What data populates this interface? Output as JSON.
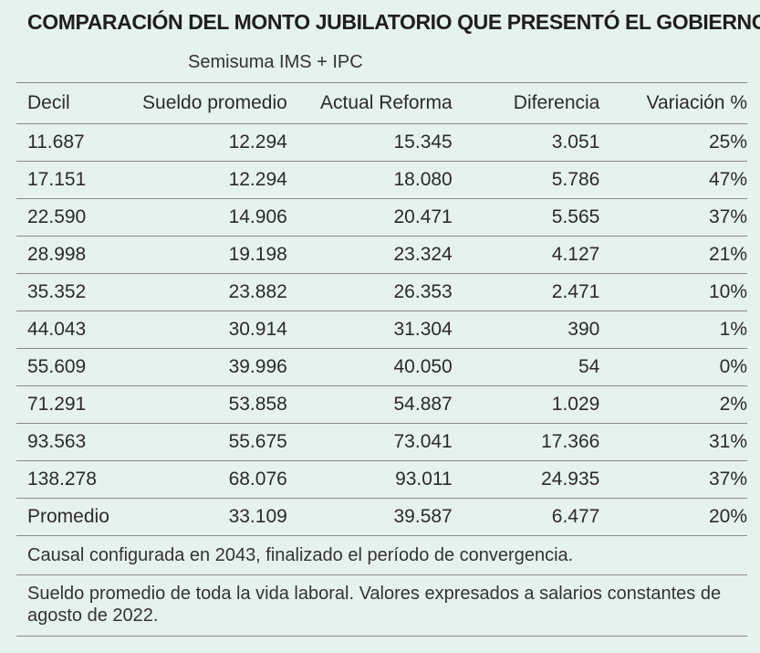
{
  "title": "COMPARACIÓN DEL MONTO JUBILATORIO QUE PRESENTÓ EL GOBIERNO",
  "subtitle": "Semisuma IMS + IPC",
  "columns": [
    "Decil",
    "Sueldo promedio",
    "Actual Reforma",
    "Diferencia",
    "Variación %"
  ],
  "rows": [
    [
      "11.687",
      "12.294",
      "15.345",
      "3.051",
      "25%"
    ],
    [
      "17.151",
      "12.294",
      "18.080",
      "5.786",
      "47%"
    ],
    [
      "22.590",
      "14.906",
      "20.471",
      "5.565",
      "37%"
    ],
    [
      "28.998",
      "19.198",
      "23.324",
      "4.127",
      "21%"
    ],
    [
      "35.352",
      "23.882",
      "26.353",
      "2.471",
      "10%"
    ],
    [
      "44.043",
      "30.914",
      "31.304",
      "390",
      "1%"
    ],
    [
      "55.609",
      "39.996",
      "40.050",
      "54",
      "0%"
    ],
    [
      "71.291",
      "53.858",
      "54.887",
      "1.029",
      "2%"
    ],
    [
      "93.563",
      "55.675",
      "73.041",
      "17.366",
      "31%"
    ],
    [
      "138.278",
      "68.076",
      "93.011",
      "24.935",
      "37%"
    ],
    [
      "Promedio",
      "33.109",
      "39.587",
      "6.477",
      "20%"
    ]
  ],
  "notes": [
    "Causal configurada en 2043, finalizado el período de convergencia.",
    "Sueldo promedio de toda la vida laboral. Valores expresados a salarios constantes de agosto de 2022."
  ],
  "colors": {
    "background": "#e6f2ee",
    "rule": "#8a8a8a",
    "text": "#2b2b2b"
  }
}
